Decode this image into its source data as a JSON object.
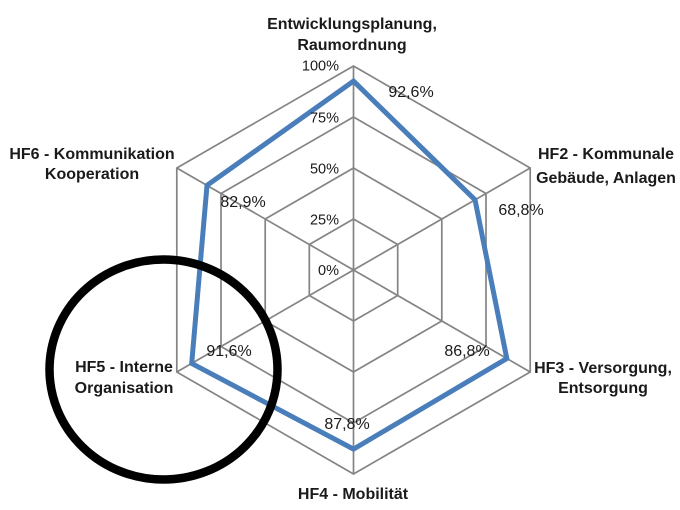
{
  "chart_data": {
    "type": "radar",
    "title": "",
    "unit": "%",
    "axis_range": [
      0,
      100
    ],
    "ring_step": 25,
    "grid": true,
    "legend": false,
    "tick_labels": [
      "0%",
      "25%",
      "50%",
      "75%",
      "100%"
    ],
    "categories": [
      "Entwicklungsplanung, Raumordnung",
      "HF2 - Kommunale Gebäude, Anlagen",
      "HF3 - Versorgung, Entsorgung",
      "HF4 - Mobilität",
      "HF5 - Interne Organisation",
      "HF6 - Kommunikation Kooperation"
    ],
    "axes": [
      {
        "id": "entwicklungsplanung",
        "label_lines": [
          "Entwicklungsplanung,",
          "Raumordnung"
        ],
        "value": 92.6,
        "value_label": "92,6%"
      },
      {
        "id": "hf2",
        "label_lines": [
          "HF2 - Kommunale",
          "Gebäude, Anlagen"
        ],
        "value": 68.8,
        "value_label": "68,8%"
      },
      {
        "id": "hf3",
        "label_lines": [
          "HF3 - Versorgung,",
          "Entsorgung"
        ],
        "value": 86.8,
        "value_label": "86,8%"
      },
      {
        "id": "hf4",
        "label_lines": [
          "HF4 - Mobilität"
        ],
        "value": 87.8,
        "value_label": "87,8%"
      },
      {
        "id": "hf5",
        "label_lines": [
          "HF5 - Interne",
          "Organisation"
        ],
        "value": 91.6,
        "value_label": "91,6%"
      },
      {
        "id": "hf6",
        "label_lines": [
          "HF6 - Kommunikation",
          "Kooperation"
        ],
        "value": 82.9,
        "value_label": "82,9%"
      }
    ],
    "series": [
      {
        "name": "",
        "values": [
          92.6,
          68.8,
          86.8,
          87.8,
          91.6,
          82.9
        ]
      }
    ],
    "annotation": {
      "shape": "ellipse",
      "around": "HF5 - Interne Organisation",
      "color": "#000000"
    },
    "colors": {
      "series_line": "#4a7eba",
      "grid_line": "#848484",
      "text": "#1a1a1a",
      "background": "#ffffff"
    }
  }
}
